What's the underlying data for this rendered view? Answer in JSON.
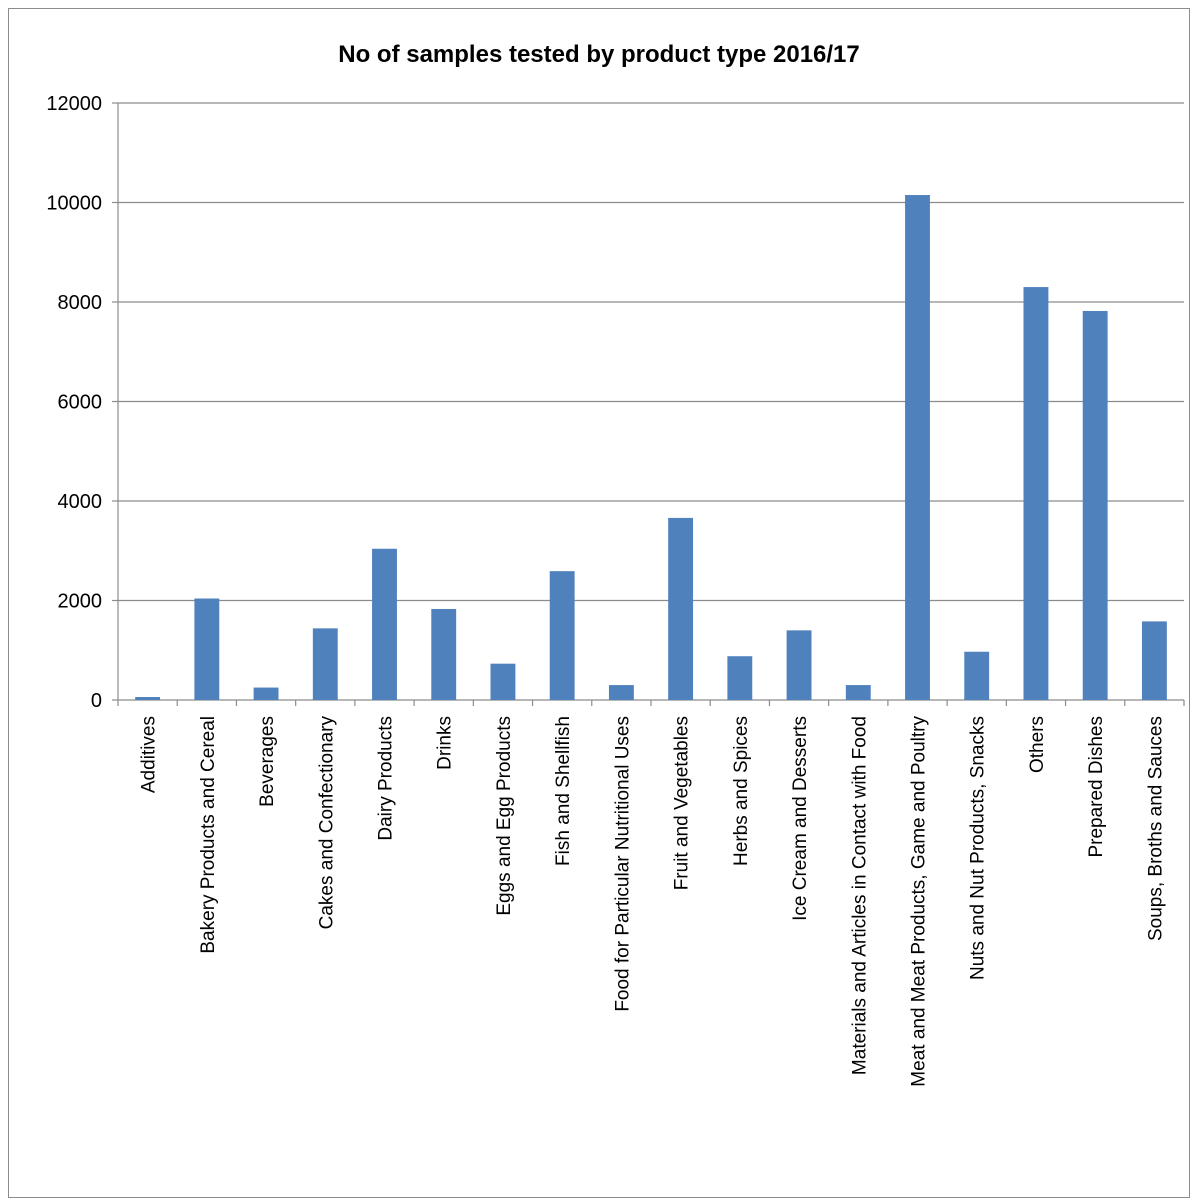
{
  "chart_data": {
    "type": "bar",
    "title": "No of samples tested by product type 2016/17",
    "xlabel": "",
    "ylabel": "",
    "ylim": [
      0,
      12000
    ],
    "y_ticks": [
      "0",
      "2000",
      "4000",
      "6000",
      "8000",
      "10000",
      "12000"
    ],
    "grid": true,
    "legend": "none",
    "bar_color": "#4f81bd",
    "categories": [
      "Additives",
      "Bakery Products and Cereal",
      "Beverages",
      "Cakes and Confectionary",
      "Dairy Products",
      "Drinks",
      "Eggs and Egg Products",
      "Fish and Shellfish",
      "Food for Particular Nutritional Uses",
      "Fruit and Vegetables",
      "Herbs and Spices",
      "Ice Cream and Desserts",
      "Materials and Articles in Contact with Food",
      "Meat and Meat Products, Game and Poultry",
      "Nuts and Nut Products, Snacks",
      "Others",
      "Prepared Dishes",
      "Soups, Broths and Sauces"
    ],
    "values": [
      60,
      2040,
      250,
      1440,
      3040,
      1830,
      730,
      2590,
      300,
      3660,
      880,
      1400,
      300,
      10150,
      970,
      8300,
      7820,
      1580
    ]
  }
}
